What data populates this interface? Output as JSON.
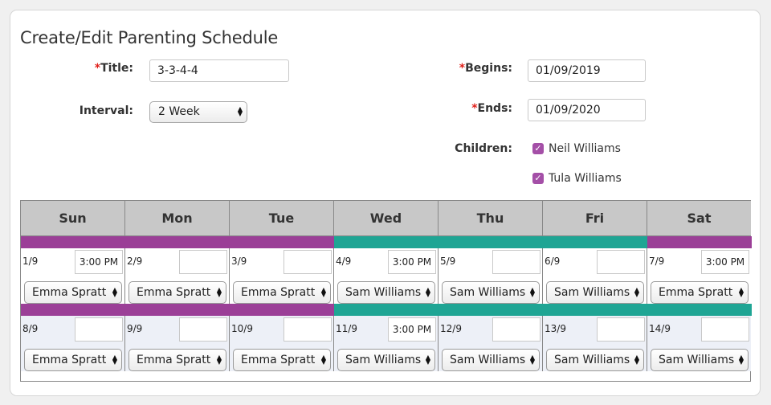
{
  "form": {
    "title": "Create/Edit Parenting Schedule",
    "required_mark": "*",
    "title_label": "Title:",
    "title_value": "3-3-4-4",
    "interval_label": "Interval:",
    "interval_value": "2 Week",
    "begins_label": "Begins:",
    "begins_value": "01/09/2019",
    "ends_label": "Ends:",
    "ends_value": "01/09/2020",
    "children_label": "Children:",
    "children": [
      "Neil Williams",
      "Tula Williams"
    ],
    "checkbox_glyph": "✓"
  },
  "colors": {
    "emma": "#9b3f97",
    "sam": "#1fa594",
    "week2_bg": "#edf0f7"
  },
  "days": [
    "Sun",
    "Mon",
    "Tue",
    "Wed",
    "Thu",
    "Fri",
    "Sat"
  ],
  "weeks": [
    {
      "cells": [
        {
          "date": "1/9",
          "time": "3:00 PM",
          "parent": "Emma Spratt"
        },
        {
          "date": "2/9",
          "time": "",
          "parent": "Emma Spratt"
        },
        {
          "date": "3/9",
          "time": "",
          "parent": "Emma Spratt"
        },
        {
          "date": "4/9",
          "time": "3:00 PM",
          "parent": "Sam Williams"
        },
        {
          "date": "5/9",
          "time": "",
          "parent": "Sam Williams"
        },
        {
          "date": "6/9",
          "time": "",
          "parent": "Sam Williams"
        },
        {
          "date": "7/9",
          "time": "3:00 PM",
          "parent": "Emma Spratt"
        }
      ]
    },
    {
      "cells": [
        {
          "date": "8/9",
          "time": "",
          "parent": "Emma Spratt"
        },
        {
          "date": "9/9",
          "time": "",
          "parent": "Emma Spratt"
        },
        {
          "date": "10/9",
          "time": "",
          "parent": "Emma Spratt"
        },
        {
          "date": "11/9",
          "time": "3:00 PM",
          "parent": "Sam Williams"
        },
        {
          "date": "12/9",
          "time": "",
          "parent": "Sam Williams"
        },
        {
          "date": "13/9",
          "time": "",
          "parent": "Sam Williams"
        },
        {
          "date": "14/9",
          "time": "",
          "parent": "Sam Williams"
        }
      ]
    }
  ]
}
